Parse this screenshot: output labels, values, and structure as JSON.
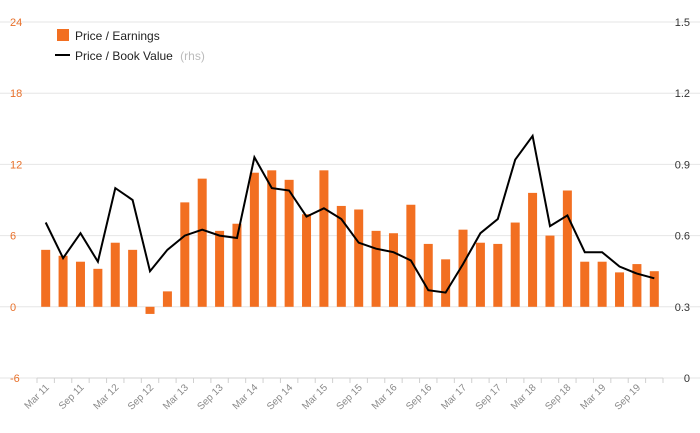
{
  "chart_data": {
    "type": "bar+line",
    "x": [
      "Mar 11",
      "Jun 11",
      "Sep 11",
      "Dec 11",
      "Mar 12",
      "Jun 12",
      "Sep 12",
      "Dec 12",
      "Mar 13",
      "Jun 13",
      "Sep 13",
      "Dec 13",
      "Mar 14",
      "Jun 14",
      "Sep 14",
      "Dec 14",
      "Mar 15",
      "Jun 15",
      "Sep 15",
      "Dec 15",
      "Mar 16",
      "Jun 16",
      "Sep 16",
      "Dec 16",
      "Mar 17",
      "Jun 17",
      "Sep 17",
      "Dec 17",
      "Mar 18",
      "Jun 18",
      "Sep 18",
      "Dec 18",
      "Mar 19",
      "Jun 19",
      "Sep 19",
      "Dec 19"
    ],
    "x_tick_labels": [
      "Mar 11",
      "Sep 11",
      "Mar 12",
      "Sep 12",
      "Mar 13",
      "Sep 13",
      "Mar 14",
      "Sep 14",
      "Mar 15",
      "Sep 15",
      "Mar 16",
      "Sep 16",
      "Mar 17",
      "Sep 17",
      "Mar 18",
      "Sep 18",
      "Mar 19",
      "Sep 19"
    ],
    "series": [
      {
        "name": "Price / Earnings",
        "kind": "bar",
        "axis": "left",
        "color": "#f26f21",
        "values": [
          4.8,
          4.3,
          3.8,
          3.2,
          5.4,
          4.8,
          -0.6,
          1.3,
          8.8,
          10.8,
          6.4,
          7.0,
          11.3,
          11.5,
          10.7,
          7.8,
          11.5,
          8.5,
          8.2,
          6.4,
          6.2,
          8.6,
          5.3,
          4.0,
          6.5,
          5.4,
          5.3,
          7.1,
          9.6,
          6.0,
          9.8,
          3.8,
          3.8,
          2.9,
          3.6,
          3.0
        ]
      },
      {
        "name": "Price / Book Value",
        "axis_note": "(rhs)",
        "kind": "line",
        "axis": "right",
        "color": "#000000",
        "values": [
          0.655,
          0.505,
          0.61,
          0.49,
          0.8,
          0.75,
          0.45,
          0.54,
          0.6,
          0.625,
          0.6,
          0.59,
          0.93,
          0.8,
          0.79,
          0.68,
          0.715,
          0.67,
          0.57,
          0.545,
          0.53,
          0.495,
          0.37,
          0.36,
          0.48,
          0.61,
          0.67,
          0.92,
          1.02,
          0.64,
          0.685,
          0.53,
          0.53,
          0.47,
          0.44,
          0.42
        ]
      }
    ],
    "y_left": {
      "min": -6,
      "max": 24,
      "ticks": [
        "-6",
        "0",
        "6",
        "12",
        "18",
        "24"
      ],
      "color": "#e8702a"
    },
    "y_right": {
      "min": 0,
      "max": 1.5,
      "ticks": [
        "0",
        "0.3",
        "0.6",
        "0.9",
        "1.2",
        "1.5"
      ]
    },
    "grid": "horizontal",
    "legend": "top-left"
  }
}
